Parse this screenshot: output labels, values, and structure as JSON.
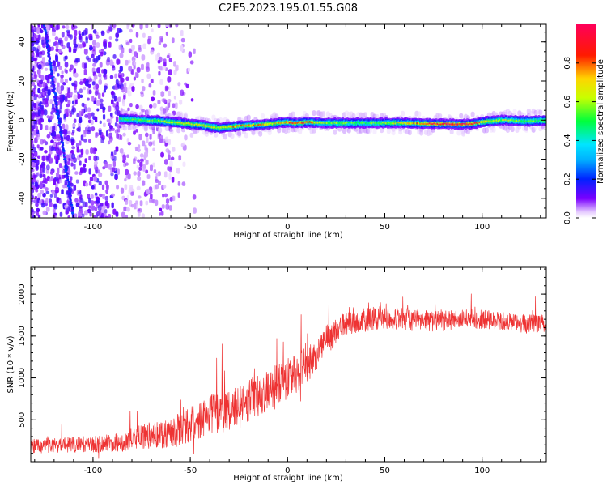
{
  "title": "C2E5.2023.195.01.55.G08",
  "chart_data": [
    {
      "type": "heatmap",
      "xlabel": "Height of straight line (km)",
      "ylabel": "Frequency (Hz)",
      "xlim": [
        -132,
        133
      ],
      "ylim": [
        -50,
        49
      ],
      "xticks": [
        -100,
        -50,
        0,
        50,
        100
      ],
      "yticks": [
        -40,
        -20,
        0,
        20,
        40
      ],
      "colorbar": {
        "label": "Normalized spectral amplitude",
        "range": [
          0,
          1
        ],
        "ticks": [
          0.0,
          0.2,
          0.4,
          0.6,
          0.8
        ],
        "tick_labels": [
          "0.0",
          "0.2",
          "0.4",
          "0.6",
          "0.8"
        ],
        "colormap": [
          "#ffffff",
          "#7a00ff",
          "#0022ff",
          "#00e5ff",
          "#00ff3c",
          "#c8ff00",
          "#ffd400",
          "#ff1a00",
          "#ff005a"
        ]
      },
      "ridge": {
        "x": [
          -85,
          -75,
          -65,
          -55,
          -45,
          -35,
          -25,
          -15,
          -5,
          0,
          5,
          10,
          20,
          40,
          60,
          80,
          95,
          100,
          110,
          125,
          133
        ],
        "freq": [
          0.5,
          0.0,
          -0.5,
          -1.5,
          -2.5,
          -4.0,
          -3.0,
          -2.5,
          -1.5,
          -1.0,
          -1.5,
          -1.0,
          -1.5,
          -1.5,
          -1.5,
          -2.0,
          -2.0,
          -1.0,
          0.0,
          -0.5,
          0.0
        ],
        "peak_amplitude": [
          0.5,
          0.55,
          0.6,
          0.65,
          0.7,
          0.65,
          0.75,
          0.75,
          0.7,
          0.8,
          0.85,
          0.8,
          0.6,
          0.5,
          0.7,
          0.95,
          0.95,
          0.7,
          0.6,
          0.55,
          0.5
        ]
      },
      "streak": {
        "freq_at_top": 49,
        "freq_at_bottom": -50,
        "x_at_top": -125,
        "x_at_bottom": -110
      }
    },
    {
      "type": "line",
      "xlabel": "Height of straight line (km)",
      "ylabel": "SNR (10 * v/v)",
      "xlim": [
        -132,
        133
      ],
      "ylim": [
        0,
        2320
      ],
      "xticks": [
        -100,
        -50,
        0,
        50,
        100
      ],
      "yticks": [
        500,
        1000,
        1500,
        2000
      ],
      "series": [
        {
          "color": "#ee3333",
          "x": [
            -132,
            -120,
            -100,
            -85,
            -75,
            -65,
            -55,
            -45,
            -35,
            -30,
            -25,
            -20,
            -15,
            -10,
            -5,
            0,
            5,
            10,
            15,
            20,
            25,
            30,
            40,
            50,
            60,
            70,
            80,
            90,
            100,
            110,
            120,
            133
          ],
          "mean": [
            180,
            200,
            210,
            230,
            300,
            330,
            380,
            500,
            600,
            620,
            650,
            720,
            800,
            850,
            900,
            1000,
            1050,
            1150,
            1300,
            1450,
            1550,
            1650,
            1700,
            1720,
            1700,
            1680,
            1680,
            1700,
            1700,
            1680,
            1650,
            1650
          ],
          "noise": [
            90,
            90,
            100,
            110,
            150,
            170,
            200,
            220,
            250,
            260,
            260,
            260,
            260,
            260,
            260,
            250,
            240,
            230,
            200,
            180,
            150,
            140,
            140,
            140,
            130,
            130,
            120,
            120,
            110,
            110,
            110,
            110
          ]
        }
      ]
    }
  ]
}
